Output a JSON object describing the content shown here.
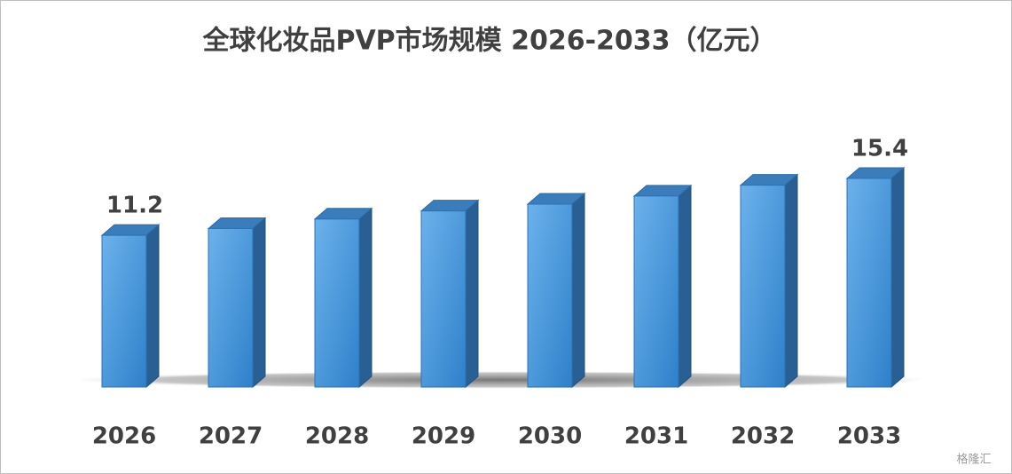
{
  "chart_data": {
    "type": "bar3d",
    "title": "全球化妆品PVP市场规模 2026-2033（亿元）",
    "categories": [
      "2026",
      "2027",
      "2028",
      "2029",
      "2030",
      "2031",
      "2032",
      "2033"
    ],
    "values": [
      11.2,
      11.7,
      12.4,
      13.0,
      13.5,
      14.1,
      14.9,
      15.4
    ],
    "value_labels": [
      "11.2",
      null,
      null,
      null,
      null,
      null,
      null,
      "15.4"
    ],
    "color": "#4a96dc"
  },
  "watermark": "格隆汇"
}
